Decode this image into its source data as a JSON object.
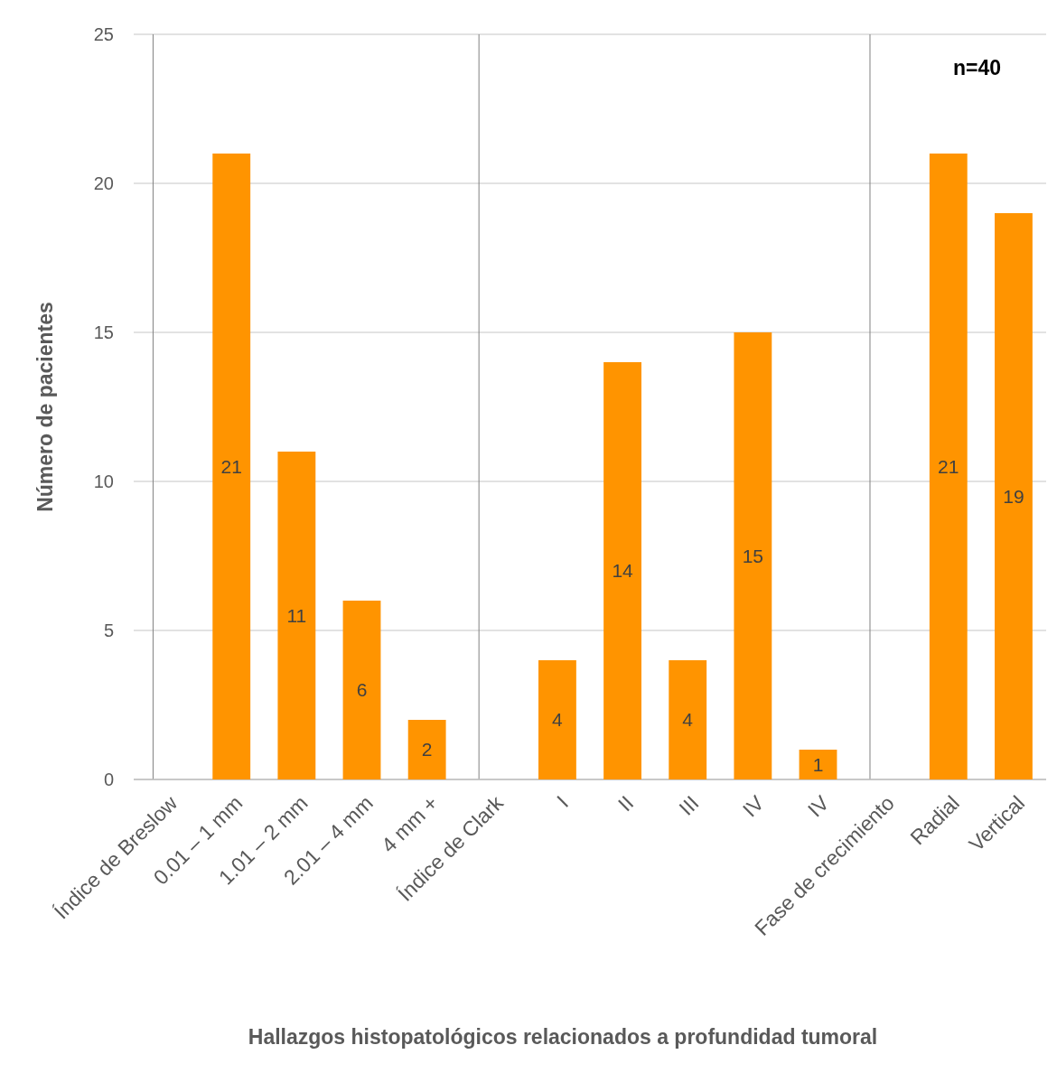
{
  "chart_data": {
    "type": "bar",
    "xlabel": "Hallazgos histopatológicos relacionados a profundidad tumoral",
    "ylabel": "Número de pacientes",
    "categories": [
      "Índice de Breslow",
      "0.01 – 1 mm",
      "1.01 – 2 mm",
      "2.01 – 4 mm",
      "4 mm +",
      "Índice de Clark",
      "I",
      "II",
      "III",
      "IV",
      "IV",
      "Fase de crecimiento",
      "Radial",
      "Vertical"
    ],
    "values": [
      null,
      21,
      11,
      6,
      2,
      null,
      4,
      14,
      4,
      15,
      1,
      null,
      21,
      19
    ],
    "color": "#ff9400",
    "ylim": [
      0,
      25
    ],
    "yticks": [
      0,
      5,
      10,
      15,
      20,
      25
    ],
    "grid": "y",
    "data_labels": true,
    "ref_lines": [
      {
        "axis": "x",
        "value": "Índice de Breslow",
        "color": "#808080"
      },
      {
        "axis": "x",
        "value": "Índice de Clark",
        "color": "#808080"
      },
      {
        "axis": "x",
        "value": "Fase de crecimiento",
        "color": "#808080"
      }
    ],
    "annotations": [
      "n=40"
    ]
  }
}
